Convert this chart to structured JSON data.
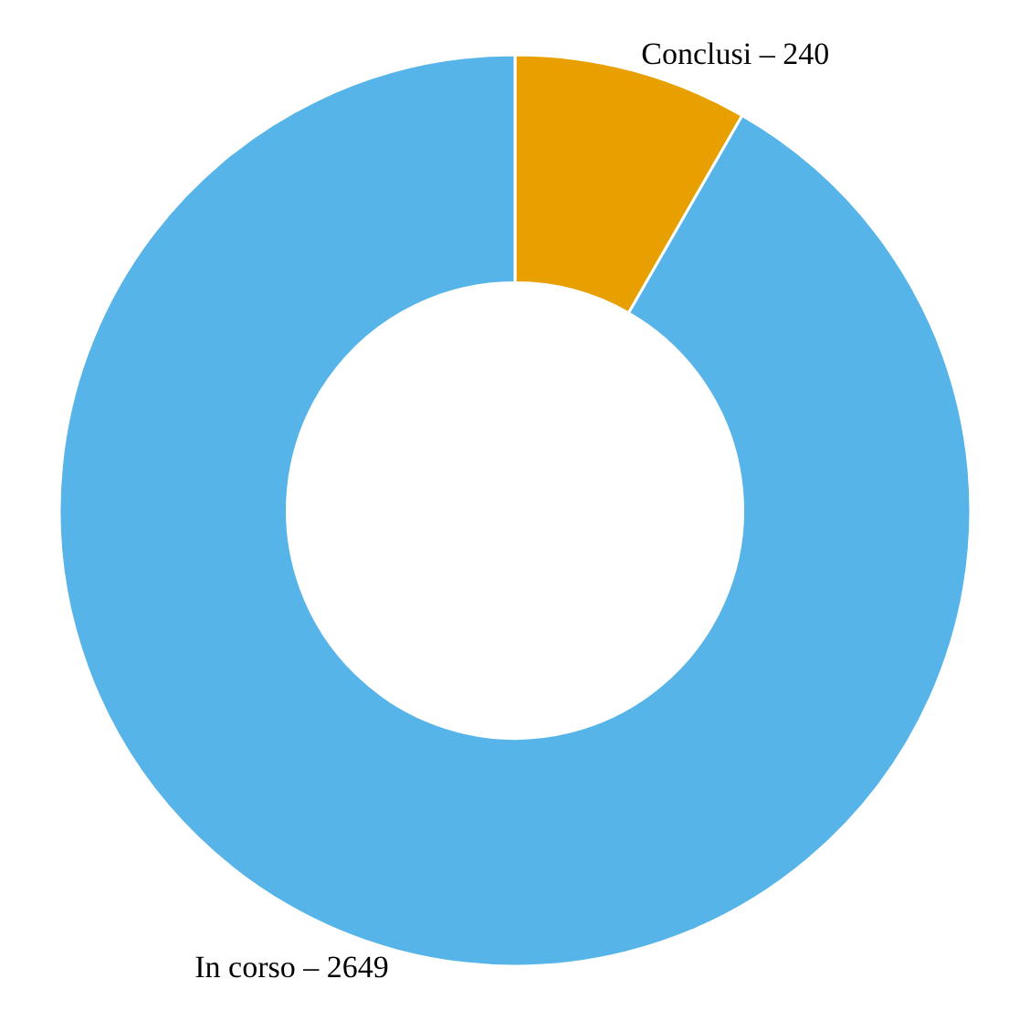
{
  "chart_data": {
    "type": "donut",
    "categories": [
      "Conclusi",
      "In corso"
    ],
    "values": [
      240,
      2649
    ],
    "colors": [
      "#e8a000",
      "#56b4e9"
    ],
    "value_labels": [
      "240",
      "2649"
    ],
    "legend": false
  }
}
